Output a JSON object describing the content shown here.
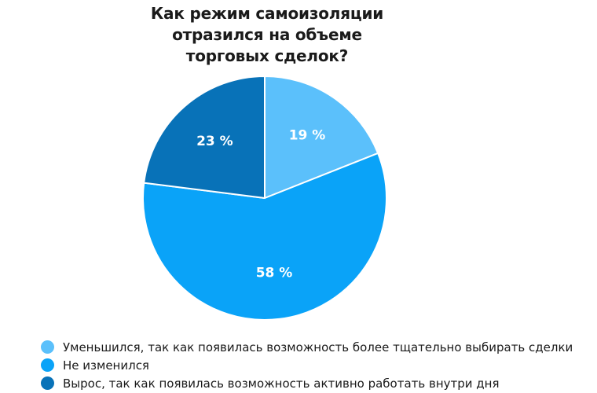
{
  "chart_data": {
    "type": "pie",
    "title_lines": [
      "Как режим самоизоляции",
      "отразился на объеме",
      "торговых сделок?"
    ],
    "slices": [
      {
        "label": "Уменьшился, так как появилась возможность более тщательно выбирать сделки",
        "value": 19,
        "value_label": "19 %",
        "color": "#5bc0fb"
      },
      {
        "label": "Не изменился",
        "value": 58,
        "value_label": "58 %",
        "color": "#0aa3f8"
      },
      {
        "label": "Вырос, так как появилась возможность активно работать внутри дня",
        "value": 23,
        "value_label": "23 %",
        "color": "#0872b8"
      }
    ],
    "legend_position": "bottom-left"
  }
}
